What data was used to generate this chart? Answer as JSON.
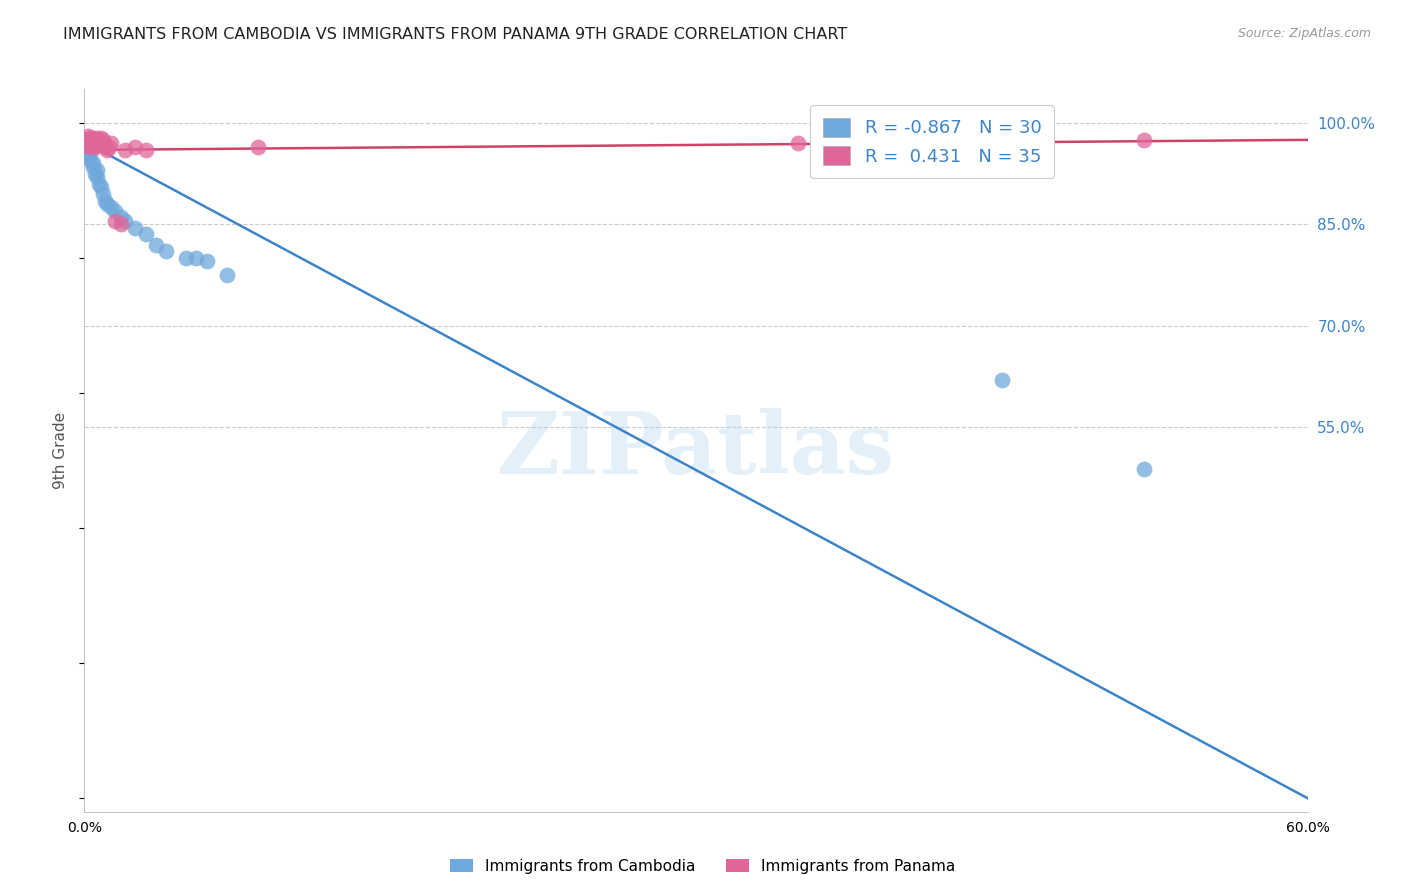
{
  "title": "IMMIGRANTS FROM CAMBODIA VS IMMIGRANTS FROM PANAMA 9TH GRADE CORRELATION CHART",
  "source": "Source: ZipAtlas.com",
  "ylabel": "9th Grade",
  "legend_labels": [
    "Immigrants from Cambodia",
    "Immigrants from Panama"
  ],
  "R_cambodia": -0.867,
  "N_cambodia": 30,
  "R_panama": 0.431,
  "N_panama": 35,
  "color_cambodia": "#6fa8dc",
  "color_panama": "#e06699",
  "line_color_cambodia": "#3d85c8",
  "line_color_panama": "#cc4466",
  "xlim": [
    0.0,
    0.6
  ],
  "ylim": [
    -0.02,
    1.05
  ],
  "right_yticks": [
    1.0,
    0.85,
    0.7,
    0.55
  ],
  "right_yticklabels": [
    "100.0%",
    "85.0%",
    "70.0%",
    "55.0%"
  ],
  "watermark": "ZIPatlas",
  "cambodia_x": [
    0.001,
    0.001,
    0.002,
    0.002,
    0.003,
    0.003,
    0.004,
    0.004,
    0.005,
    0.006,
    0.006,
    0.007,
    0.008,
    0.009,
    0.01,
    0.011,
    0.013,
    0.015,
    0.018,
    0.02,
    0.025,
    0.03,
    0.035,
    0.04,
    0.05,
    0.055,
    0.06,
    0.07,
    0.45,
    0.52
  ],
  "cambodia_y": [
    0.975,
    0.965,
    0.96,
    0.95,
    0.955,
    0.945,
    0.94,
    0.935,
    0.925,
    0.93,
    0.92,
    0.91,
    0.905,
    0.895,
    0.885,
    0.88,
    0.875,
    0.87,
    0.86,
    0.855,
    0.845,
    0.835,
    0.82,
    0.81,
    0.8,
    0.8,
    0.795,
    0.775,
    0.62,
    0.488
  ],
  "panama_x": [
    0.001,
    0.001,
    0.002,
    0.002,
    0.002,
    0.003,
    0.003,
    0.003,
    0.004,
    0.004,
    0.005,
    0.005,
    0.005,
    0.006,
    0.006,
    0.006,
    0.007,
    0.007,
    0.008,
    0.008,
    0.009,
    0.009,
    0.01,
    0.01,
    0.011,
    0.012,
    0.013,
    0.015,
    0.018,
    0.02,
    0.025,
    0.03,
    0.085,
    0.35,
    0.52
  ],
  "panama_y": [
    0.975,
    0.968,
    0.98,
    0.975,
    0.968,
    0.978,
    0.972,
    0.965,
    0.978,
    0.972,
    0.975,
    0.97,
    0.965,
    0.978,
    0.972,
    0.968,
    0.975,
    0.97,
    0.978,
    0.972,
    0.975,
    0.97,
    0.968,
    0.965,
    0.96,
    0.965,
    0.97,
    0.855,
    0.85,
    0.96,
    0.965,
    0.96,
    0.965,
    0.97,
    0.975
  ],
  "cam_trend_x": [
    0.0,
    0.6
  ],
  "cam_trend_y": [
    0.972,
    0.0
  ],
  "pan_trend_x": [
    0.0,
    0.6
  ],
  "pan_trend_y": [
    0.96,
    0.975
  ]
}
